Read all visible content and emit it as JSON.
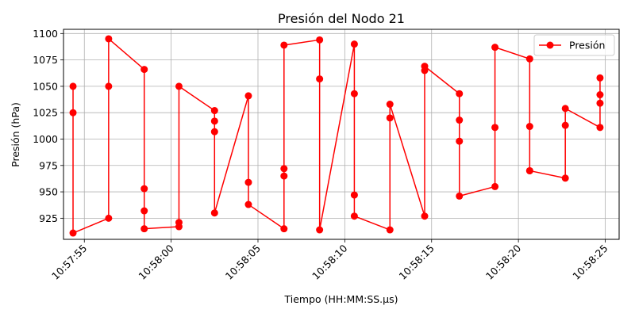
{
  "chart_data": {
    "type": "line",
    "title": "Presión del Nodo 21",
    "xlabel": "Tiempo (HH:MM:SS.µs)",
    "ylabel": "Presión (hPa)",
    "xlim": [
      "10:57:53.80",
      "10:58:25.80"
    ],
    "ylim": [
      905,
      1104
    ],
    "x_ticks": [
      "10:57:55",
      "10:58:00",
      "10:58:05",
      "10:58:10",
      "10:58:15",
      "10:58:20",
      "10:58:25"
    ],
    "y_ticks": [
      925,
      950,
      975,
      1000,
      1025,
      1050,
      1075,
      1100
    ],
    "grid": true,
    "legend_position": "top-right",
    "series": [
      {
        "name": "Presión",
        "color": "#ff0000",
        "marker": "circle",
        "x": [
          "10:57:54.35",
          "10:57:54.35",
          "10:57:54.35",
          "10:57:56.40",
          "10:57:56.40",
          "10:57:56.40",
          "10:57:58.45",
          "10:57:58.45",
          "10:57:58.45",
          "10:57:58.45",
          "10:58:00.45",
          "10:58:00.45",
          "10:58:00.45",
          "10:58:02.50",
          "10:58:02.50",
          "10:58:02.50",
          "10:58:02.50",
          "10:58:04.45",
          "10:58:04.45",
          "10:58:04.45",
          "10:58:06.50",
          "10:58:06.50",
          "10:58:06.50",
          "10:58:06.50",
          "10:58:08.55",
          "10:58:08.55",
          "10:58:08.55",
          "10:58:10.55",
          "10:58:10.55",
          "10:58:10.55",
          "10:58:10.55",
          "10:58:12.60",
          "10:58:12.60",
          "10:58:12.60",
          "10:58:14.60",
          "10:58:14.60",
          "10:58:14.60",
          "10:58:16.60",
          "10:58:16.60",
          "10:58:16.60",
          "10:58:16.60",
          "10:58:18.65",
          "10:58:18.65",
          "10:58:18.65",
          "10:58:20.65",
          "10:58:20.65",
          "10:58:20.65",
          "10:58:20.65",
          "10:58:22.70",
          "10:58:22.70",
          "10:58:22.70",
          "10:58:24.70",
          "10:58:24.70",
          "10:58:24.70",
          "10:58:24.70"
        ],
        "y": [
          1050,
          1025,
          911,
          925,
          1050,
          1095,
          1066,
          953,
          932,
          915,
          917,
          921,
          1050,
          1027,
          1017,
          1007,
          930,
          1041,
          959,
          938,
          915,
          965,
          972,
          1089,
          1094,
          1057,
          914,
          1090,
          1043,
          947,
          927,
          914,
          1020,
          1033,
          927,
          1065,
          1069,
          1043,
          1018,
          998,
          946,
          955,
          1011,
          1087,
          1076,
          1012,
          970,
          970,
          963,
          1013,
          1029,
          1011,
          1034,
          1042,
          1058
        ]
      }
    ]
  }
}
